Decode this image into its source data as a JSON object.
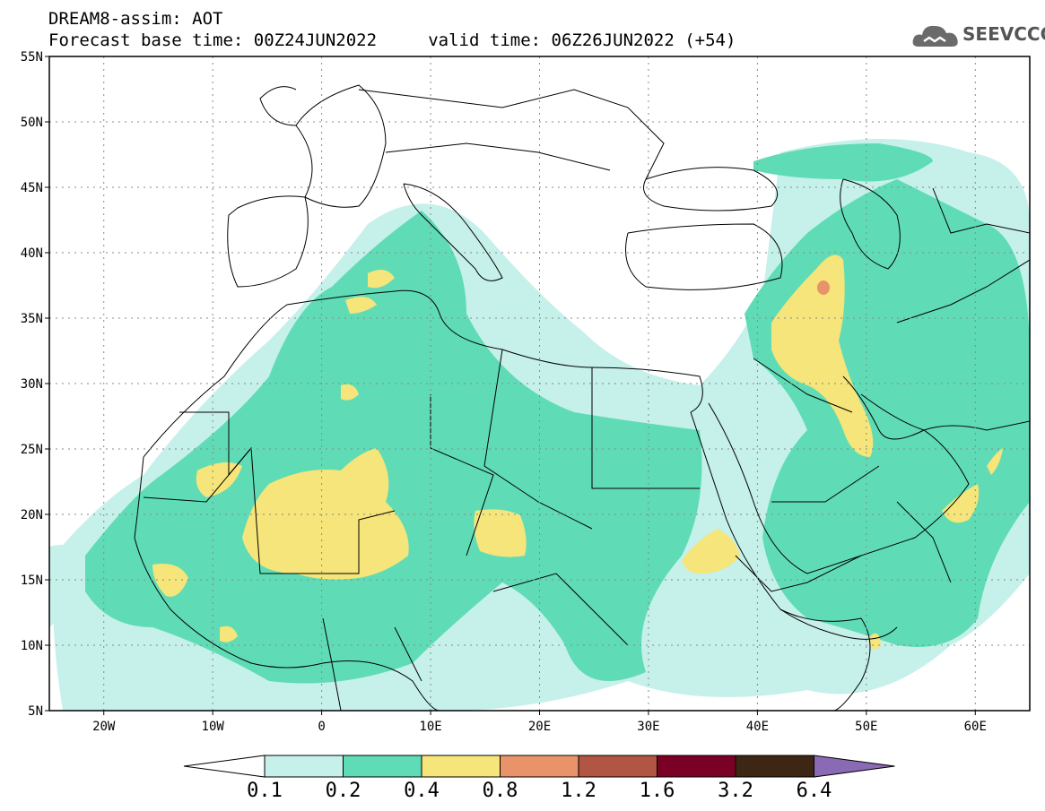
{
  "header": {
    "title_line1": "DREAM8-assim: AOT",
    "title_line2": "Forecast base time: 00Z24JUN2022     valid time: 06Z26JUN2022 (+54)",
    "logo_text": "SEEVCCC",
    "logo_icon": "cloud-icon"
  },
  "map": {
    "lat_labels": [
      "55N",
      "50N",
      "45N",
      "40N",
      "35N",
      "30N",
      "25N",
      "20N",
      "15N",
      "10N",
      "5N"
    ],
    "lon_labels": [
      "20W",
      "10W",
      "0",
      "10E",
      "20E",
      "30E",
      "40E",
      "50E",
      "60E"
    ],
    "lat_range": [
      5,
      55
    ],
    "lon_range": [
      -25,
      65
    ],
    "grid": true,
    "variable": "AOT"
  },
  "legend": {
    "levels": [
      "0.1",
      "0.2",
      "0.4",
      "0.8",
      "1.2",
      "1.6",
      "3.2",
      "6.4"
    ],
    "colors": [
      "#ffffff",
      "#c6f0ea",
      "#5fdcb6",
      "#f5e57a",
      "#e8936a",
      "#b15642",
      "#7a0026",
      "#3d2614",
      "#8a6ab4"
    ]
  }
}
